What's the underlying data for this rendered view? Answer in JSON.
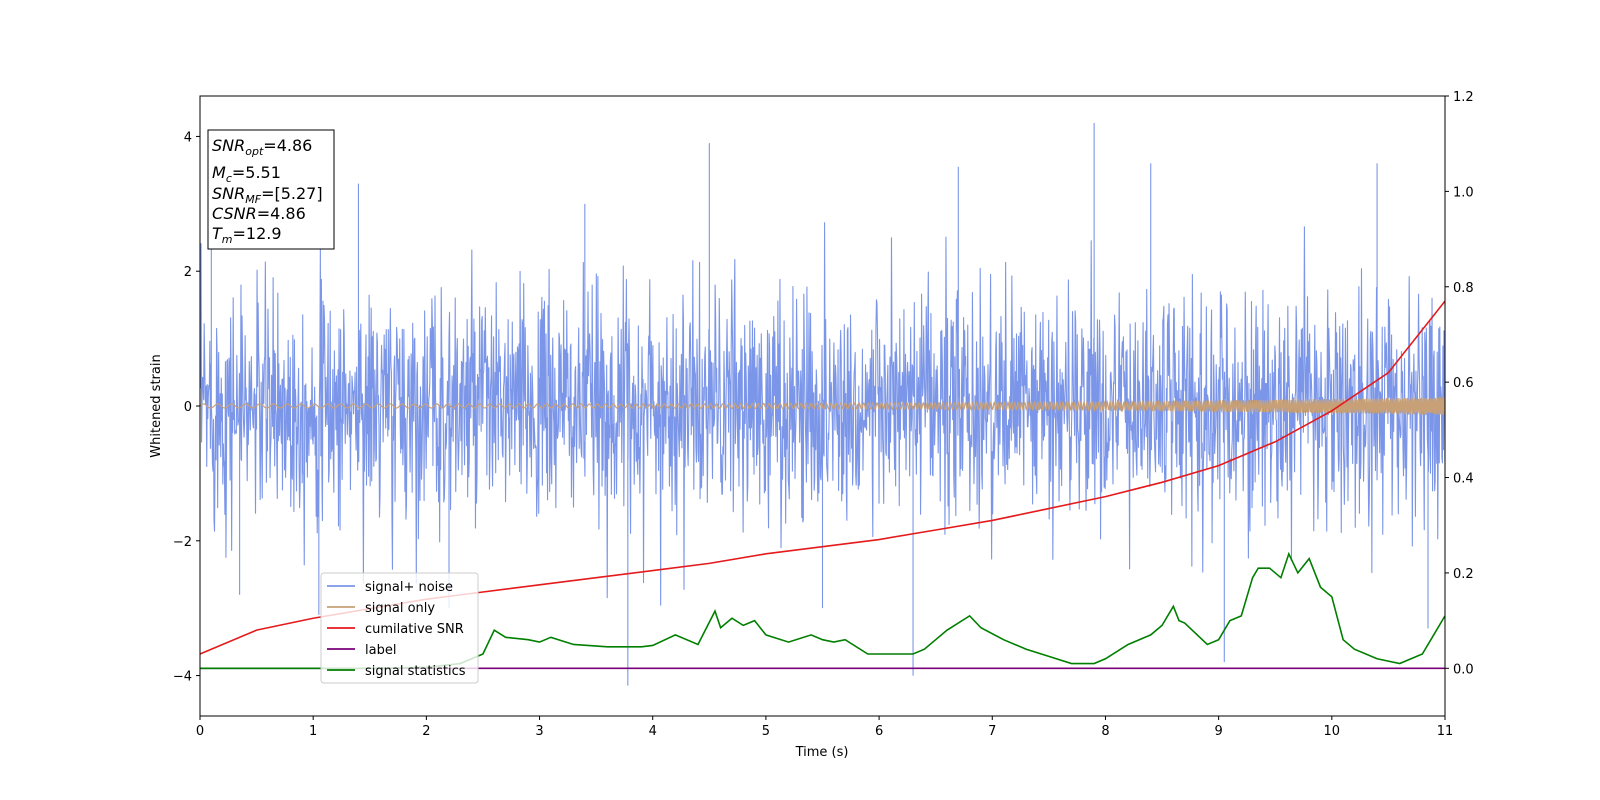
{
  "chart_data": {
    "type": "line",
    "title": "",
    "xlabel": "Time (s)",
    "ylabel_left": "Whitened strain",
    "ylabel_right": "",
    "xlim": [
      0,
      11
    ],
    "ylim_left": [
      -4.6,
      4.6
    ],
    "ylim_right": [
      -0.1,
      1.2
    ],
    "xticks": [
      "0",
      "1",
      "2",
      "3",
      "4",
      "5",
      "6",
      "7",
      "8",
      "9",
      "10",
      "11"
    ],
    "yticks_left": [
      "−4",
      "−2",
      "0",
      "2",
      "4"
    ],
    "yticks_right": [
      "0.0",
      "0.2",
      "0.4",
      "0.6",
      "0.8",
      "1.0",
      "1.2"
    ],
    "grid": false,
    "legend_position": "lower-left",
    "info_box": {
      "snr_opt": {
        "base": "SNR",
        "sub": "opt",
        "value": "=4.86"
      },
      "mc": {
        "base": "M",
        "sub": "c",
        "value": "=5.51"
      },
      "snr_mf": {
        "base": "SNR",
        "sub": "MF",
        "value": "=[5.27]"
      },
      "csnr": {
        "base": "CSNR",
        "value": "=4.86"
      },
      "tm": {
        "base": "T",
        "sub": "m",
        "value": "=12.9"
      }
    },
    "series": [
      {
        "name": "signal+ noise",
        "axis": "left",
        "color": "#7b96e8",
        "style": "noise-band",
        "sigma": 0.85,
        "peak_samples": [
          [
            0.1,
            3.2
          ],
          [
            0.35,
            -2.8
          ],
          [
            1.05,
            -3.1
          ],
          [
            1.4,
            3.3
          ],
          [
            2.2,
            -3.0
          ],
          [
            3.4,
            3.0
          ],
          [
            3.78,
            -4.15
          ],
          [
            4.5,
            3.9
          ],
          [
            5.5,
            -3.0
          ],
          [
            6.3,
            -4.0
          ],
          [
            6.7,
            3.55
          ],
          [
            7.9,
            4.2
          ],
          [
            8.4,
            3.6
          ],
          [
            9.05,
            -3.8
          ],
          [
            10.4,
            3.6
          ],
          [
            10.85,
            -3.3
          ]
        ]
      },
      {
        "name": "signal only",
        "axis": "left",
        "color": "#c8a077",
        "style": "chirp",
        "amplitude": [
          [
            0,
            0.03
          ],
          [
            4,
            0.03
          ],
          [
            8,
            0.06
          ],
          [
            11,
            0.13
          ]
        ]
      },
      {
        "name": "cumilative SNR",
        "axis": "right",
        "color": "#e41a1c",
        "x": [
          0,
          0.5,
          1,
          1.5,
          2,
          2.5,
          3,
          3.5,
          4,
          4.5,
          5,
          5.5,
          6,
          6.5,
          7,
          7.5,
          8,
          8.5,
          9,
          9.5,
          10,
          10.5,
          11
        ],
        "y": [
          0.03,
          0.08,
          0.105,
          0.125,
          0.145,
          0.16,
          0.175,
          0.19,
          0.205,
          0.22,
          0.24,
          0.255,
          0.27,
          0.29,
          0.31,
          0.335,
          0.36,
          0.39,
          0.425,
          0.475,
          0.54,
          0.62,
          0.77
        ]
      },
      {
        "name": "label",
        "axis": "right",
        "color": "#7a007a",
        "x": [
          0,
          11
        ],
        "y": [
          0.0,
          0.0
        ]
      },
      {
        "name": "signal statistics",
        "axis": "right",
        "color": "#007f00",
        "x": [
          0,
          1,
          1.5,
          2,
          2.3,
          2.5,
          2.6,
          2.7,
          2.9,
          3.0,
          3.1,
          3.3,
          3.6,
          3.9,
          4.0,
          4.2,
          4.4,
          4.55,
          4.6,
          4.7,
          4.8,
          4.9,
          5.0,
          5.2,
          5.4,
          5.5,
          5.6,
          5.7,
          5.9,
          6.1,
          6.3,
          6.4,
          6.5,
          6.6,
          6.8,
          6.9,
          7.1,
          7.3,
          7.5,
          7.7,
          7.9,
          8.0,
          8.2,
          8.4,
          8.5,
          8.6,
          8.65,
          8.7,
          8.9,
          9.0,
          9.1,
          9.2,
          9.3,
          9.35,
          9.45,
          9.55,
          9.62,
          9.7,
          9.8,
          9.9,
          10.0,
          10.1,
          10.2,
          10.4,
          10.6,
          10.8,
          10.9,
          11.0
        ],
        "y": [
          0.0,
          0.0,
          0.0,
          0.002,
          0.01,
          0.03,
          0.08,
          0.065,
          0.06,
          0.055,
          0.065,
          0.05,
          0.045,
          0.045,
          0.048,
          0.07,
          0.05,
          0.12,
          0.085,
          0.105,
          0.09,
          0.1,
          0.07,
          0.055,
          0.07,
          0.06,
          0.055,
          0.06,
          0.03,
          0.03,
          0.03,
          0.04,
          0.06,
          0.08,
          0.11,
          0.085,
          0.06,
          0.04,
          0.025,
          0.01,
          0.01,
          0.02,
          0.05,
          0.07,
          0.09,
          0.13,
          0.1,
          0.095,
          0.05,
          0.06,
          0.1,
          0.11,
          0.19,
          0.21,
          0.21,
          0.19,
          0.24,
          0.2,
          0.23,
          0.17,
          0.15,
          0.06,
          0.04,
          0.02,
          0.01,
          0.03,
          0.07,
          0.11
        ]
      }
    ]
  }
}
